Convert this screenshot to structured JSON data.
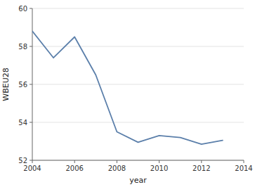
{
  "chart_data": {
    "type": "line",
    "x": [
      2004,
      2005,
      2006,
      2007,
      2008,
      2009,
      2010,
      2011,
      2012,
      2013
    ],
    "values": [
      58.8,
      57.4,
      58.5,
      56.5,
      53.5,
      52.95,
      53.3,
      53.2,
      52.85,
      53.05
    ],
    "xlabel": "year",
    "ylabel": "WBEU28",
    "xlim": [
      2004,
      2014
    ],
    "ylim": [
      52,
      60
    ],
    "xticks": [
      2004,
      2006,
      2008,
      2010,
      2012,
      2014
    ],
    "yticks": [
      52,
      54,
      56,
      58,
      60
    ],
    "color": "#5b7faa",
    "grid": true
  }
}
